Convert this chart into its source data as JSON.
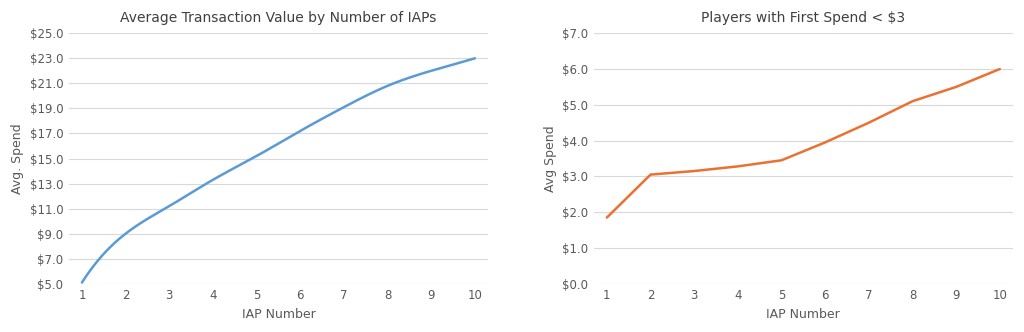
{
  "chart1": {
    "title": "Average Transaction Value by Number of IAPs",
    "xlabel": "IAP Number",
    "ylabel": "Avg. Spend",
    "x": [
      1,
      2,
      3,
      4,
      5,
      6,
      7,
      8,
      9,
      10
    ],
    "y": [
      5.1,
      9.0,
      11.2,
      13.3,
      15.2,
      17.2,
      19.1,
      20.8,
      22.0,
      23.0
    ],
    "line_color": "#5b9bd5",
    "ylim": [
      5.0,
      25.0
    ],
    "yticks": [
      5.0,
      7.0,
      9.0,
      11.0,
      13.0,
      15.0,
      17.0,
      19.0,
      21.0,
      23.0,
      25.0
    ],
    "xlim_min": 0.7,
    "xlim_max": 10.3,
    "xticks": [
      1,
      2,
      3,
      4,
      5,
      6,
      7,
      8,
      9,
      10
    ],
    "smooth": true
  },
  "chart2": {
    "title": "Players with First Spend < $3",
    "xlabel": "IAP Number",
    "ylabel": "Avg Spend",
    "x": [
      1,
      2,
      3,
      4,
      5,
      6,
      7,
      8,
      9,
      10
    ],
    "y": [
      1.85,
      3.05,
      3.15,
      3.28,
      3.45,
      3.95,
      4.5,
      5.1,
      5.5,
      6.0
    ],
    "line_color": "#e97132",
    "ylim": [
      0.0,
      7.0
    ],
    "yticks": [
      0.0,
      1.0,
      2.0,
      3.0,
      4.0,
      5.0,
      6.0,
      7.0
    ],
    "xlim_min": 0.7,
    "xlim_max": 10.3,
    "xticks": [
      1,
      2,
      3,
      4,
      5,
      6,
      7,
      8,
      9,
      10
    ],
    "smooth": false
  },
  "bg_color": "#ffffff",
  "grid_color": "#d9d9d9",
  "text_color": "#595959",
  "title_color": "#404040",
  "tick_label_color": "#595959",
  "linewidth": 1.8
}
